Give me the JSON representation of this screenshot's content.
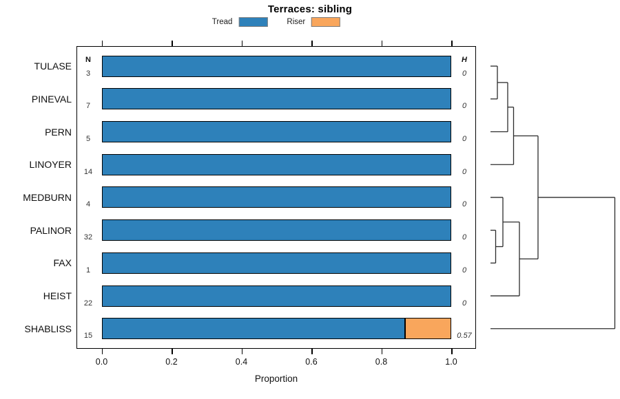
{
  "title": "Terraces: sibling",
  "legend": {
    "items": [
      {
        "label": "Tread",
        "color": "#2E81BA"
      },
      {
        "label": "Riser",
        "color": "#F9A65C"
      }
    ]
  },
  "columns": {
    "n_header": "N",
    "h_header": "H"
  },
  "chart_data": {
    "type": "bar",
    "orientation": "horizontal",
    "stacked": true,
    "title": "Terraces: sibling",
    "xlabel": "Proportion",
    "xlim": [
      0.0,
      1.0
    ],
    "x_ticks": [
      "0.0",
      "0.2",
      "0.4",
      "0.6",
      "0.8",
      "1.0"
    ],
    "x_tick_values": [
      0.0,
      0.2,
      0.4,
      0.6,
      0.8,
      1.0
    ],
    "legend_position": "top",
    "grid": false,
    "categories": [
      "TULASE",
      "PINEVAL",
      "PERN",
      "LINOYER",
      "MEDBURN",
      "PALINOR",
      "FAX",
      "HEIST",
      "SHABLISS"
    ],
    "series": [
      {
        "name": "Tread",
        "values": [
          1.0,
          1.0,
          1.0,
          1.0,
          1.0,
          1.0,
          1.0,
          1.0,
          0.867
        ]
      },
      {
        "name": "Riser",
        "values": [
          0.0,
          0.0,
          0.0,
          0.0,
          0.0,
          0.0,
          0.0,
          0.0,
          0.133
        ]
      }
    ],
    "rows": [
      {
        "label": "TULASE",
        "n": 3,
        "h": "0",
        "tread": 1.0,
        "riser": 0.0
      },
      {
        "label": "PINEVAL",
        "n": 7,
        "h": "0",
        "tread": 1.0,
        "riser": 0.0
      },
      {
        "label": "PERN",
        "n": 5,
        "h": "0",
        "tread": 1.0,
        "riser": 0.0
      },
      {
        "label": "LINOYER",
        "n": 14,
        "h": "0",
        "tread": 1.0,
        "riser": 0.0
      },
      {
        "label": "MEDBURN",
        "n": 4,
        "h": "0",
        "tread": 1.0,
        "riser": 0.0
      },
      {
        "label": "PALINOR",
        "n": 32,
        "h": "0",
        "tread": 1.0,
        "riser": 0.0
      },
      {
        "label": "FAX",
        "n": 1,
        "h": "0",
        "tread": 1.0,
        "riser": 0.0
      },
      {
        "label": "HEIST",
        "n": 22,
        "h": "0",
        "tread": 1.0,
        "riser": 0.0
      },
      {
        "label": "SHABLISS",
        "n": 15,
        "h": "0.57",
        "tread": 0.867,
        "riser": 0.133
      }
    ],
    "dendrogram": {
      "leaves": [
        "TULASE",
        "PINEVAL",
        "PERN",
        "LINOYER",
        "MEDBURN",
        "PALINOR",
        "FAX",
        "HEIST",
        "SHABLISS"
      ],
      "leaf_x": 712,
      "merges": [
        {
          "id": "m1",
          "a": "TULASE",
          "b": "PINEVAL",
          "x": 722
        },
        {
          "id": "m2",
          "a": "m1",
          "b": "PERN",
          "x": 737
        },
        {
          "id": "m3",
          "a": "m2",
          "b": "LINOYER",
          "x": 745.5
        },
        {
          "id": "m4",
          "a": "PALINOR",
          "b": "FAX",
          "x": 719.5
        },
        {
          "id": "m5",
          "a": "MEDBURN",
          "b": "m4",
          "x": 730
        },
        {
          "id": "m6",
          "a": "m5",
          "b": "HEIST",
          "x": 754
        },
        {
          "id": "m7",
          "a": "m3",
          "b": "m6",
          "x": 781
        },
        {
          "id": "m8",
          "a": "m7",
          "b": "SHABLISS",
          "x": 892.5
        }
      ]
    }
  }
}
